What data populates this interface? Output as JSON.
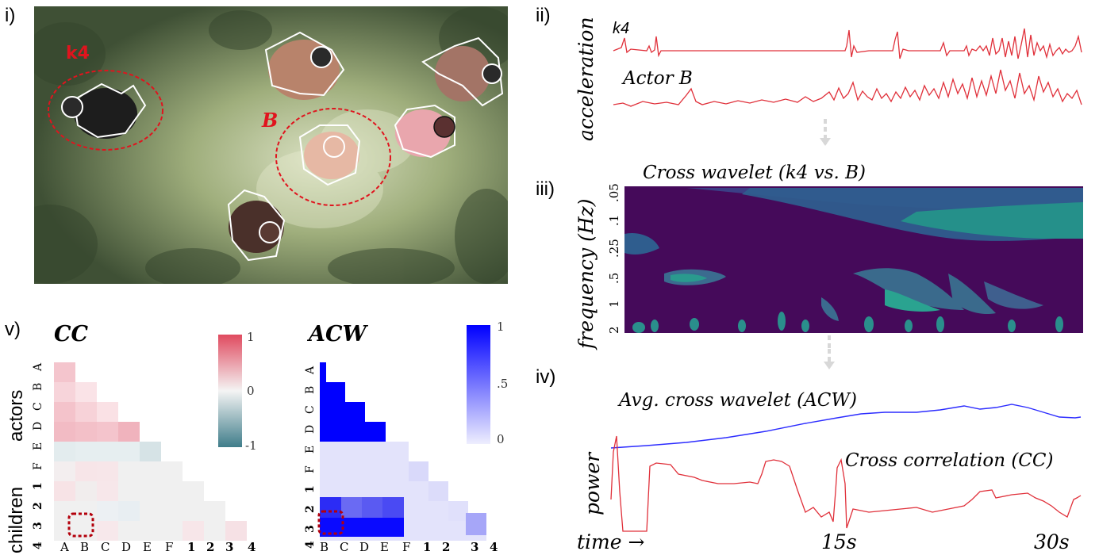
{
  "panels": {
    "i": "i)",
    "ii": "ii)",
    "iii": "iii)",
    "iv": "iv)",
    "v": "v)"
  },
  "photo": {
    "label_k4": "k4",
    "label_B": "B"
  },
  "acceleration": {
    "ylabel": "acceleration",
    "series_k4": "k4",
    "series_B": "Actor B"
  },
  "cross_wavelet": {
    "title": "Cross wavelet (k4 vs. B)",
    "ylabel": "frequency (Hz)",
    "yticks": [
      ".05",
      ".1",
      ".25",
      ".5",
      "1",
      "2"
    ]
  },
  "power": {
    "ylabel": "power",
    "acw_label": "Avg. cross wavelet (ACW)",
    "cc_label": "Cross correlation (CC)",
    "xlabel": "time →",
    "xtick_mid": "15s",
    "xtick_end": "30s"
  },
  "cc_matrix": {
    "title": "CC",
    "group_actors": "actors",
    "group_children": "children",
    "row_labels": [
      "A",
      "B",
      "C",
      "D",
      "E",
      "F",
      "1",
      "2",
      "3",
      "4"
    ],
    "col_labels": [
      "A",
      "B",
      "C",
      "D",
      "E",
      "F",
      "1",
      "2",
      "3",
      "4"
    ],
    "colorbar_ticks": [
      "1",
      "0",
      "-1"
    ],
    "colors": {
      "pos": "#e04a5f",
      "neg": "#3f7d8a"
    }
  },
  "acw_matrix": {
    "title": "ACW",
    "row_labels": [
      "A",
      "B",
      "C",
      "D",
      "E",
      "F",
      "1",
      "2",
      "3",
      "4"
    ],
    "col_labels": [
      "B",
      "C",
      "D",
      "E",
      "F",
      "1",
      "2",
      "3",
      "4"
    ],
    "colorbar_ticks": [
      "1",
      ".5",
      "0"
    ],
    "colors": {
      "max": "#0000ff"
    }
  }
}
